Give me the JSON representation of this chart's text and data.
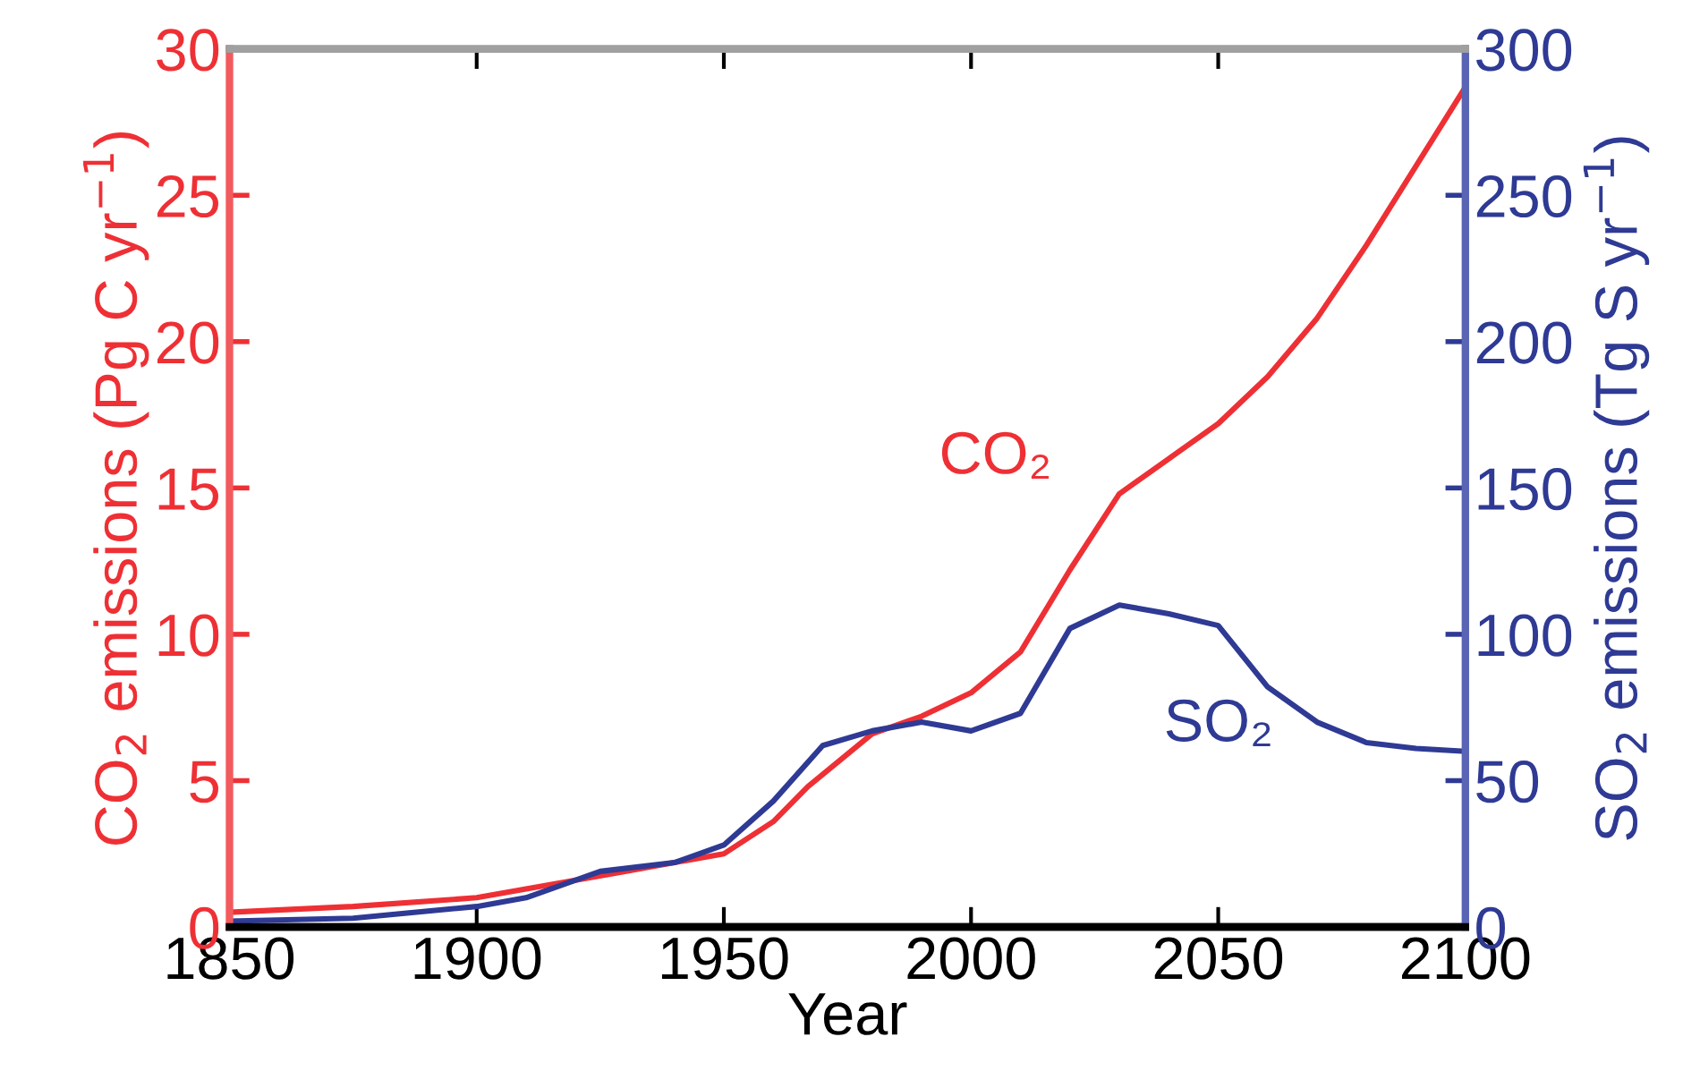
{
  "chart_data": {
    "type": "line",
    "xlabel": "Year",
    "ylabel": "CO$_{2}$ emissions (Pg C yr$^{−1}$)",
    "y2label": "SO$_{2}$ emissions (Tg S yr$^{−1}$)",
    "xlim": [
      1850,
      2100
    ],
    "xticks": [
      1850,
      1900,
      1950,
      2000,
      2050,
      2100
    ],
    "ylim": [
      0,
      30
    ],
    "yticks": [
      0,
      5,
      10,
      15,
      20,
      25,
      30
    ],
    "y2lim": [
      0,
      300
    ],
    "y2ticks": [
      0,
      50,
      100,
      150,
      200,
      250,
      300
    ],
    "grid": false,
    "legend": false,
    "series": [
      {
        "name": "CO₂",
        "color": "#ee3035",
        "x": [
          1850,
          1875,
          1900,
          1910,
          1920,
          1930,
          1940,
          1950,
          1960,
          1967,
          1980,
          1990,
          2000,
          2010,
          2020,
          2030,
          2040,
          2050,
          2060,
          2070,
          2080,
          2090,
          2100
        ],
        "values": [
          0.5,
          0.7,
          1.0,
          1.3,
          1.6,
          1.9,
          2.2,
          2.5,
          3.6,
          4.8,
          6.6,
          7.2,
          8.0,
          9.4,
          12.2,
          14.8,
          16.0,
          17.2,
          18.8,
          20.8,
          23.3,
          26.0,
          28.7
        ]
      },
      {
        "name": "SO₂",
        "color": "#2e3a94",
        "axis": "y2",
        "x": [
          1850,
          1875,
          1900,
          1910,
          1925,
          1940,
          1950,
          1960,
          1970,
          1980,
          1990,
          2000,
          2010,
          2020,
          2030,
          2040,
          2050,
          2060,
          2070,
          2080,
          2090,
          2100
        ],
        "values": [
          2,
          3,
          7,
          10,
          19,
          22,
          28,
          43,
          62,
          67,
          70,
          67,
          73,
          102,
          110,
          107,
          103,
          82,
          70,
          63,
          61,
          60
        ]
      }
    ]
  }
}
